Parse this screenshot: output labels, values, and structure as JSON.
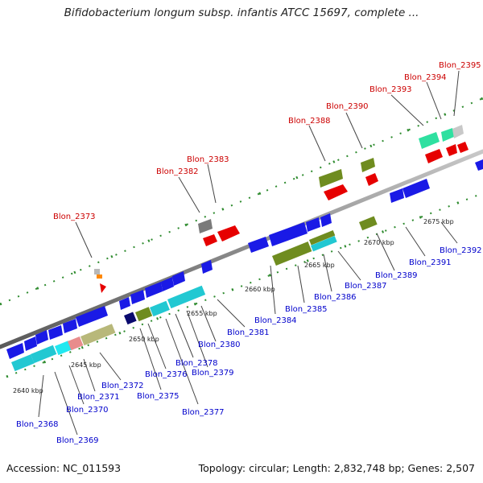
{
  "title": "Bifidobacterium longum subsp. infantis ATCC 15697, complete ...",
  "accession": "Accession: NC_011593",
  "summary": "Topology: circular; Length: 2,832,748 bp; Genes: 2,507",
  "colors": {
    "forward_red": "#e60000",
    "reverse_blue": "#1a1ae6",
    "cyan": "#22c8d2",
    "olive": "#6f8c1f",
    "khaki": "#b8b87a",
    "green_mint": "#2fe0a0",
    "salmon": "#e88c8c",
    "navy": "#0a0a6e",
    "gray": "#808080",
    "orange": "#ff8800"
  },
  "kbp_marks": [
    {
      "label": "2640 kbp"
    },
    {
      "label": "2645 kbp"
    },
    {
      "label": "2650 kbp"
    },
    {
      "label": "2655 kbp"
    },
    {
      "label": "2660 kbp"
    },
    {
      "label": "2665 kbp"
    },
    {
      "label": "2670 kbp"
    },
    {
      "label": "2675 kbp"
    }
  ],
  "genes_forward": [
    {
      "name": "Blon_2373"
    },
    {
      "name": "Blon_2382"
    },
    {
      "name": "Blon_2383"
    },
    {
      "name": "Blon_2388"
    },
    {
      "name": "Blon_2390"
    },
    {
      "name": "Blon_2393"
    },
    {
      "name": "Blon_2394"
    },
    {
      "name": "Blon_2395"
    }
  ],
  "genes_reverse": [
    {
      "name": "Blon_2368"
    },
    {
      "name": "Blon_2369"
    },
    {
      "name": "Blon_2370"
    },
    {
      "name": "Blon_2371"
    },
    {
      "name": "Blon_2372"
    },
    {
      "name": "Blon_2375"
    },
    {
      "name": "Blon_2376"
    },
    {
      "name": "Blon_2377"
    },
    {
      "name": "Blon_2378"
    },
    {
      "name": "Blon_2379"
    },
    {
      "name": "Blon_2380"
    },
    {
      "name": "Blon_2381"
    },
    {
      "name": "Blon_2384"
    },
    {
      "name": "Blon_2385"
    },
    {
      "name": "Blon_2386"
    },
    {
      "name": "Blon_2387"
    },
    {
      "name": "Blon_2389"
    },
    {
      "name": "Blon_2391"
    },
    {
      "name": "Blon_2392"
    }
  ]
}
